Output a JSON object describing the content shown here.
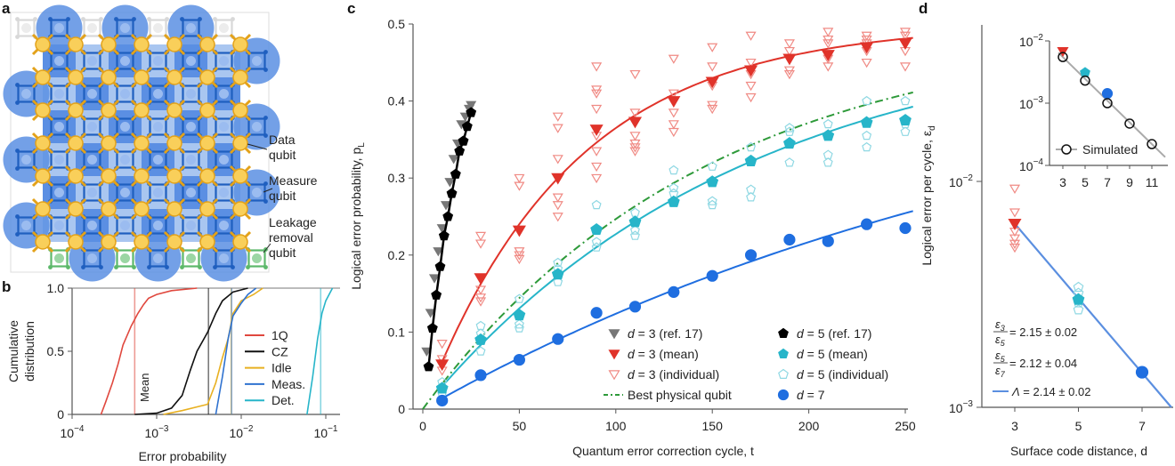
{
  "panel_labels": {
    "a": "a",
    "b": "b",
    "c": "c",
    "d": "d"
  },
  "diagram_a": {
    "labels": {
      "data_qubit": [
        "Data",
        "qubit"
      ],
      "measure_qubit": [
        "Measure",
        "qubit"
      ],
      "leakage_qubit": [
        "Leakage",
        "removal",
        "qubit"
      ]
    },
    "colors": {
      "data": "#f2b72c",
      "measure": "#1f5fbf",
      "leakage": "#5cb86a",
      "unused": "#d8d8d8",
      "plaquette_dark": "#5b8fe3",
      "plaquette_light": "#a9c6f0"
    },
    "code_distance": 7
  },
  "chart_data": [
    {
      "id": "b",
      "type": "line",
      "xlabel": "Error probability",
      "ylabel": [
        "Cumulative",
        "distribution"
      ],
      "xscale": "log",
      "xlim": [
        0.0001,
        0.15
      ],
      "ylim": [
        0,
        1
      ],
      "xticks": [
        {
          "base": "10",
          "exp": "−4",
          "v": 0.0001
        },
        {
          "base": "10",
          "exp": "−3",
          "v": 0.001
        },
        {
          "base": "10",
          "exp": "−2",
          "v": 0.01
        },
        {
          "base": "10",
          "exp": "−1",
          "v": 0.1
        }
      ],
      "yticks": [
        {
          "label": "0",
          "v": 0
        },
        {
          "label": "0.5",
          "v": 0.5
        },
        {
          "label": "1.0",
          "v": 1
        }
      ],
      "mean_label": "Mean",
      "legend": "right",
      "series": [
        {
          "name": "1Q",
          "color": "#e0483e",
          "mean": 0.00055,
          "points": [
            [
              0.00022,
              0
            ],
            [
              0.00025,
              0.1
            ],
            [
              0.0003,
              0.25
            ],
            [
              0.00035,
              0.4
            ],
            [
              0.0004,
              0.55
            ],
            [
              0.0005,
              0.7
            ],
            [
              0.0006,
              0.8
            ],
            [
              0.0007,
              0.87
            ],
            [
              0.0008,
              0.92
            ],
            [
              0.001,
              0.95
            ],
            [
              0.0015,
              0.98
            ],
            [
              0.003,
              1
            ]
          ]
        },
        {
          "name": "CZ",
          "color": "#111111",
          "mean": 0.0041,
          "points": [
            [
              0.00055,
              0
            ],
            [
              0.001,
              0.01
            ],
            [
              0.0015,
              0.05
            ],
            [
              0.002,
              0.15
            ],
            [
              0.0025,
              0.35
            ],
            [
              0.003,
              0.5
            ],
            [
              0.004,
              0.65
            ],
            [
              0.005,
              0.8
            ],
            [
              0.006,
              0.9
            ],
            [
              0.008,
              0.97
            ],
            [
              0.012,
              1
            ]
          ]
        },
        {
          "name": "Idle",
          "color": "#e8b020",
          "mean": 0.0076,
          "points": [
            [
              0.0012,
              0
            ],
            [
              0.002,
              0.03
            ],
            [
              0.004,
              0.08
            ],
            [
              0.005,
              0.25
            ],
            [
              0.006,
              0.45
            ],
            [
              0.007,
              0.6
            ],
            [
              0.008,
              0.8
            ],
            [
              0.01,
              0.9
            ],
            [
              0.014,
              0.95
            ],
            [
              0.018,
              1
            ]
          ]
        },
        {
          "name": "Meas.",
          "color": "#2f72d0",
          "mean": 0.0077,
          "points": [
            [
              0.005,
              0
            ],
            [
              0.006,
              0.3
            ],
            [
              0.007,
              0.6
            ],
            [
              0.008,
              0.78
            ],
            [
              0.01,
              0.88
            ],
            [
              0.012,
              0.95
            ],
            [
              0.015,
              1
            ]
          ]
        },
        {
          "name": "Det.",
          "color": "#27b5c9",
          "mean": 0.087,
          "points": [
            [
              0.06,
              0
            ],
            [
              0.07,
              0.3
            ],
            [
              0.08,
              0.6
            ],
            [
              0.09,
              0.8
            ],
            [
              0.1,
              0.9
            ],
            [
              0.12,
              1
            ]
          ]
        }
      ]
    },
    {
      "id": "c",
      "type": "scatter",
      "xlabel": "Quantum error correction cycle, t",
      "ylabel": "Logical error probability, p",
      "ylabel_sub": "L",
      "xlim": [
        0,
        255
      ],
      "ylim": [
        0,
        0.5
      ],
      "xticks": [
        0,
        50,
        100,
        150,
        200,
        250
      ],
      "yticks": [
        "0",
        "0.1",
        "0.2",
        "0.3",
        "0.4",
        "0.5"
      ],
      "legend": "bottom-right",
      "series": [
        {
          "key": "d3ref",
          "var": "d",
          "name": " = 3 (ref. 17)",
          "marker": "triangle-down",
          "fill": "#777777",
          "stroke": "#777777",
          "x": [
            2,
            4,
            6,
            8,
            10,
            12,
            14,
            16,
            18,
            20,
            22,
            24,
            25
          ],
          "y": [
            0.075,
            0.125,
            0.17,
            0.205,
            0.235,
            0.265,
            0.295,
            0.325,
            0.345,
            0.37,
            0.38,
            0.39,
            0.395
          ]
        },
        {
          "key": "d3mean",
          "var": "d",
          "name": " = 3 (mean)",
          "marker": "triangle-down",
          "fill": "#e0332a",
          "stroke": "#e0332a",
          "fit_error_per_cycle": 0.0065,
          "x": [
            10,
            30,
            50,
            70,
            90,
            110,
            130,
            150,
            170,
            190,
            210,
            230,
            250
          ],
          "y": [
            0.058,
            0.17,
            0.232,
            0.3,
            0.363,
            0.373,
            0.4,
            0.425,
            0.44,
            0.455,
            0.46,
            0.47,
            0.475
          ]
        },
        {
          "key": "d3ind",
          "var": "d",
          "name": " = 3 (individual)",
          "marker": "triangle-down",
          "fill": "none",
          "stroke": "#f08a84",
          "x": [
            10,
            10,
            10,
            30,
            30,
            30,
            30,
            30,
            50,
            50,
            50,
            50,
            50,
            70,
            70,
            70,
            70,
            70,
            70,
            90,
            90,
            90,
            90,
            90,
            90,
            90,
            90,
            110,
            110,
            110,
            110,
            110,
            110,
            130,
            130,
            130,
            130,
            130,
            150,
            150,
            150,
            150,
            150,
            170,
            170,
            170,
            170,
            170,
            190,
            190,
            190,
            190,
            190,
            210,
            210,
            210,
            210,
            210,
            230,
            230,
            230,
            230,
            230,
            250,
            250,
            250,
            250,
            250
          ],
          "y": [
            0.085,
            0.065,
            0.05,
            0.225,
            0.215,
            0.155,
            0.145,
            0.14,
            0.3,
            0.29,
            0.205,
            0.2,
            0.195,
            0.38,
            0.365,
            0.325,
            0.275,
            0.265,
            0.25,
            0.445,
            0.415,
            0.41,
            0.39,
            0.355,
            0.335,
            0.315,
            0.3,
            0.435,
            0.385,
            0.355,
            0.345,
            0.34,
            0.335,
            0.455,
            0.41,
            0.385,
            0.37,
            0.36,
            0.47,
            0.445,
            0.42,
            0.395,
            0.39,
            0.485,
            0.45,
            0.435,
            0.42,
            0.405,
            0.475,
            0.465,
            0.455,
            0.44,
            0.435,
            0.49,
            0.48,
            0.475,
            0.455,
            0.445,
            0.485,
            0.48,
            0.475,
            0.465,
            0.45,
            0.49,
            0.485,
            0.475,
            0.465,
            0.445
          ]
        },
        {
          "key": "d5ref",
          "var": "d",
          "name": " = 5 (ref. 17)",
          "marker": "pentagon",
          "fill": "#000000",
          "stroke": "#000000",
          "x": [
            3,
            5,
            7,
            9,
            11,
            13,
            15,
            17,
            19,
            21,
            23,
            25
          ],
          "y": [
            0.055,
            0.105,
            0.148,
            0.185,
            0.225,
            0.25,
            0.28,
            0.305,
            0.335,
            0.348,
            0.367,
            0.385
          ]
        },
        {
          "key": "d5mean",
          "var": "d",
          "name": " = 5 (mean)",
          "marker": "pentagon",
          "fill": "#27b5c9",
          "stroke": "#27b5c9",
          "fit_error_per_cycle": 0.00302,
          "x": [
            10,
            30,
            50,
            70,
            90,
            110,
            130,
            150,
            170,
            190,
            210,
            230,
            250
          ],
          "y": [
            0.027,
            0.09,
            0.122,
            0.175,
            0.233,
            0.243,
            0.269,
            0.295,
            0.322,
            0.345,
            0.355,
            0.372,
            0.375
          ]
        },
        {
          "key": "d5ind",
          "var": "d",
          "name": " = 5 (individual)",
          "marker": "pentagon",
          "fill": "none",
          "stroke": "#8fd8e3",
          "x": [
            10,
            10,
            30,
            30,
            30,
            50,
            50,
            50,
            70,
            70,
            70,
            90,
            90,
            90,
            110,
            110,
            110,
            130,
            130,
            130,
            150,
            150,
            150,
            170,
            170,
            170,
            190,
            190,
            190,
            210,
            210,
            210,
            230,
            230,
            230,
            250,
            250,
            250
          ],
          "y": [
            0.035,
            0.02,
            0.108,
            0.098,
            0.075,
            0.143,
            0.11,
            0.105,
            0.19,
            0.182,
            0.165,
            0.265,
            0.217,
            0.21,
            0.255,
            0.232,
            0.225,
            0.31,
            0.287,
            0.28,
            0.315,
            0.27,
            0.265,
            0.34,
            0.285,
            0.275,
            0.365,
            0.36,
            0.32,
            0.37,
            0.33,
            0.32,
            0.4,
            0.355,
            0.34,
            0.4,
            0.37,
            0.36
          ]
        },
        {
          "key": "phys",
          "name": "Best physical qubit",
          "marker": "dashdot",
          "fill": "none",
          "stroke": "#2e9a3a",
          "fit_error_per_cycle": 0.00339
        },
        {
          "key": "d7",
          "var": "d",
          "name": " = 7",
          "marker": "circle",
          "fill": "#1f6ee0",
          "stroke": "#1f6ee0",
          "fit_error_per_cycle": 0.00142,
          "x": [
            10,
            30,
            50,
            70,
            90,
            110,
            130,
            150,
            170,
            190,
            210,
            230,
            250
          ],
          "y": [
            0.011,
            0.044,
            0.064,
            0.091,
            0.125,
            0.133,
            0.152,
            0.173,
            0.2,
            0.22,
            0.218,
            0.24,
            0.235
          ]
        }
      ]
    },
    {
      "id": "d",
      "type": "scatter",
      "xlabel": "Surface code distance, d",
      "ylabel": "Logical error per cycle, ε",
      "ylabel_sub": "d",
      "yscale": "log",
      "xticks": [
        3,
        5,
        7
      ],
      "yticks": [
        {
          "base": "10",
          "exp": "−2",
          "v": 0.01
        },
        {
          "base": "10",
          "exp": "−3",
          "v": 0.001
        }
      ],
      "ylim": [
        0.001,
        0.0135
      ],
      "mean": {
        "x": [
          3,
          5,
          7
        ],
        "y": [
          0.0065,
          0.003,
          0.00143
        ],
        "colors": [
          "#e0332a",
          "#27b5c9",
          "#1f6ee0"
        ]
      },
      "individual_d3": [
        0.0093,
        0.0073,
        0.006,
        0.0056,
        0.0053,
        0.0051
      ],
      "individual_d5": [
        0.0034,
        0.0032,
        0.0029,
        0.0027
      ],
      "fit": {
        "lambda": 2.14,
        "color": "#5b8fe0"
      },
      "annotations": [
        {
          "num": "ε",
          "num_sub": "3",
          "den": "ε",
          "den_sub": "5",
          "text": "= 2.15 ± 0.02"
        },
        {
          "num": "ε",
          "num_sub": "5",
          "den": "ε",
          "den_sub": "7",
          "text": "= 2.12 ± 0.04"
        }
      ],
      "lambda_label": {
        "sym": "Λ",
        "text": " = 2.14 ± 0.02"
      },
      "inset": {
        "yscale": "log",
        "xticks": [
          3,
          5,
          7,
          9,
          11
        ],
        "yticks": [
          {
            "base": "10",
            "exp": "−2",
            "v": 0.01
          },
          {
            "base": "10",
            "exp": "−3",
            "v": 0.001
          },
          {
            "base": "10",
            "exp": "−4",
            "v": 0.0001
          }
        ],
        "simulated": {
          "name": "Simulated",
          "x": [
            3,
            5,
            7,
            9,
            11
          ],
          "y": [
            0.0055,
            0.0023,
            0.001,
            0.00047,
            0.00022
          ]
        },
        "experiment": {
          "x": [
            3,
            5,
            7
          ],
          "y": [
            0.0068,
            0.0031,
            0.00143
          ]
        }
      }
    }
  ]
}
